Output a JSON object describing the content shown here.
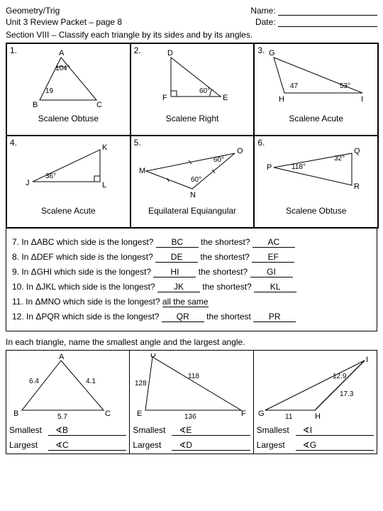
{
  "header": {
    "subject": "Geometry/Trig",
    "name_label": "Name:",
    "subtitle": "Unit 3 Review Packet – page 8",
    "date_label": "Date:",
    "section": "Section VIII – Classify each triangle by its sides and by its angles."
  },
  "triangles": [
    {
      "num": "1.",
      "ans": "Scalene Obtuse",
      "labels": {
        "A": "A",
        "B": "B",
        "C": "C",
        "a1": "104°",
        "a2": "19"
      }
    },
    {
      "num": "2.",
      "ans": "Scalene Right",
      "labels": {
        "D": "D",
        "E": "E",
        "F": "F",
        "a1": "60°"
      }
    },
    {
      "num": "3.",
      "ans": "Scalene Acute",
      "labels": {
        "G": "G",
        "H": "H",
        "I": "I",
        "a1": "47",
        "a2": "53°"
      }
    },
    {
      "num": "4.",
      "ans": "Scalene Acute",
      "labels": {
        "J": "J",
        "K": "K",
        "L": "L",
        "a1": "36°"
      }
    },
    {
      "num": "5.",
      "ans": "Equilateral Equiangular",
      "labels": {
        "M": "M",
        "N": "N",
        "O": "O",
        "a1": "60°",
        "a2": "60°"
      }
    },
    {
      "num": "6.",
      "ans": "Scalene Obtuse",
      "labels": {
        "P": "P",
        "Q": "Q",
        "R": "R",
        "a1": "118°",
        "a2": "32°"
      }
    }
  ],
  "questions": [
    {
      "pre": "7.  In ΔABC which side is the longest?",
      "a1": "BC",
      "mid": "the shortest?",
      "a2": "AC"
    },
    {
      "pre": "8.  In ΔDEF which side is the longest?",
      "a1": "DE",
      "mid": "the shortest?",
      "a2": "EF"
    },
    {
      "pre": "9.  In ΔGHI which side is the longest?",
      "a1": "HI",
      "mid": "the shortest?",
      "a2": "GI"
    },
    {
      "pre": "10. In ΔJKL which side is the longest?",
      "a1": "JK",
      "mid": "the shortest?",
      "a2": "KL"
    },
    {
      "pre": "11. In ΔMNO which side is the longest?",
      "a1": "all the same",
      "mid": "",
      "a2": ""
    },
    {
      "pre": "12. In ΔPQR which side is the longest?",
      "a1": "QR",
      "mid": "the shortest",
      "a2": "PR"
    }
  ],
  "section2": "In each triangle, name the smallest angle and the largest angle.",
  "bottom": [
    {
      "labels": {
        "A": "A",
        "B": "B",
        "C": "C",
        "s1": "6.4",
        "s2": "4.1",
        "s3": "5.7"
      },
      "smallest": "∢B",
      "largest": "∢C"
    },
    {
      "labels": {
        "D": "D",
        "E": "E",
        "F": "F",
        "s1": "128",
        "s2": "118",
        "s3": "136"
      },
      "smallest": "∢E",
      "largest": "∢D"
    },
    {
      "labels": {
        "G": "G",
        "H": "H",
        "I": "I",
        "s1": "11",
        "s2": "17.3",
        "s3": "12.9"
      },
      "smallest": "∢I",
      "largest": "∢G"
    }
  ],
  "sm_label": "Smallest",
  "lg_label": "Largest"
}
